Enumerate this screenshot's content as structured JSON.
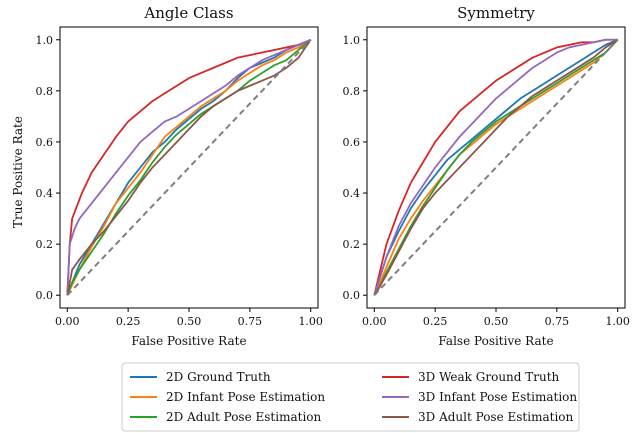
{
  "figure": {
    "ylabel": "True Positive Rate",
    "legend": {
      "placement": "bottom-center",
      "columns": 2
    }
  },
  "chart_data": [
    {
      "type": "line",
      "title": "Angle Class",
      "xlabel": "False Positive Rate",
      "ylabel": "True Positive Rate",
      "xlim": [
        -0.03,
        1.03
      ],
      "ylim": [
        -0.05,
        1.05
      ],
      "xticks": [
        "0.00",
        "0.25",
        "0.50",
        "0.75",
        "1.00"
      ],
      "yticks": [
        "0.0",
        "0.2",
        "0.4",
        "0.6",
        "0.8",
        "1.0"
      ],
      "grid": false,
      "series": [
        {
          "name": "2D Ground Truth",
          "color": "#1f77b4",
          "x": [
            0,
            0.02,
            0.05,
            0.1,
            0.15,
            0.2,
            0.25,
            0.3,
            0.35,
            0.4,
            0.45,
            0.5,
            0.55,
            0.6,
            0.65,
            0.7,
            0.75,
            0.8,
            0.85,
            0.9,
            0.95,
            1.0
          ],
          "y": [
            0,
            0.05,
            0.12,
            0.2,
            0.28,
            0.36,
            0.44,
            0.5,
            0.56,
            0.6,
            0.65,
            0.69,
            0.73,
            0.76,
            0.8,
            0.85,
            0.89,
            0.91,
            0.93,
            0.96,
            0.98,
            1.0
          ]
        },
        {
          "name": "2D Infant Pose Estimation",
          "color": "#ff7f0e",
          "x": [
            0,
            0.02,
            0.05,
            0.1,
            0.15,
            0.2,
            0.25,
            0.3,
            0.35,
            0.4,
            0.45,
            0.5,
            0.55,
            0.6,
            0.65,
            0.7,
            0.75,
            0.8,
            0.85,
            0.9,
            0.95,
            1.0
          ],
          "y": [
            0,
            0.04,
            0.1,
            0.19,
            0.27,
            0.36,
            0.42,
            0.48,
            0.55,
            0.62,
            0.66,
            0.7,
            0.74,
            0.77,
            0.8,
            0.84,
            0.87,
            0.9,
            0.92,
            0.95,
            0.97,
            1.0
          ]
        },
        {
          "name": "2D Adult Pose Estimation",
          "color": "#2ca02c",
          "x": [
            0,
            0.02,
            0.05,
            0.1,
            0.15,
            0.2,
            0.25,
            0.3,
            0.35,
            0.4,
            0.45,
            0.5,
            0.55,
            0.6,
            0.65,
            0.7,
            0.75,
            0.8,
            0.85,
            0.9,
            0.95,
            1.0
          ],
          "y": [
            0,
            0.05,
            0.1,
            0.17,
            0.24,
            0.32,
            0.39,
            0.45,
            0.52,
            0.58,
            0.63,
            0.67,
            0.71,
            0.74,
            0.77,
            0.8,
            0.84,
            0.87,
            0.9,
            0.92,
            0.96,
            1.0
          ]
        },
        {
          "name": "3D Weak Ground Truth",
          "color": "#d62728",
          "x": [
            0,
            0.01,
            0.02,
            0.04,
            0.06,
            0.08,
            0.1,
            0.15,
            0.2,
            0.25,
            0.3,
            0.35,
            0.4,
            0.45,
            0.5,
            0.55,
            0.6,
            0.65,
            0.7,
            0.75,
            0.8,
            0.85,
            0.9,
            0.95,
            1.0
          ],
          "y": [
            0,
            0.2,
            0.3,
            0.35,
            0.4,
            0.44,
            0.48,
            0.55,
            0.62,
            0.68,
            0.72,
            0.76,
            0.79,
            0.82,
            0.85,
            0.87,
            0.89,
            0.91,
            0.93,
            0.94,
            0.95,
            0.96,
            0.97,
            0.98,
            1.0
          ]
        },
        {
          "name": "3D Infant Pose Estimation",
          "color": "#9467bd",
          "x": [
            0,
            0.01,
            0.03,
            0.05,
            0.1,
            0.15,
            0.2,
            0.25,
            0.3,
            0.35,
            0.4,
            0.45,
            0.5,
            0.55,
            0.6,
            0.65,
            0.7,
            0.75,
            0.8,
            0.85,
            0.9,
            0.95,
            1.0
          ],
          "y": [
            0,
            0.2,
            0.26,
            0.3,
            0.36,
            0.42,
            0.48,
            0.54,
            0.6,
            0.64,
            0.68,
            0.7,
            0.73,
            0.76,
            0.79,
            0.82,
            0.86,
            0.89,
            0.92,
            0.94,
            0.96,
            0.98,
            1.0
          ]
        },
        {
          "name": "3D Adult Pose Estimation",
          "color": "#8c564b",
          "x": [
            0,
            0.02,
            0.05,
            0.1,
            0.15,
            0.2,
            0.25,
            0.3,
            0.35,
            0.4,
            0.45,
            0.5,
            0.55,
            0.6,
            0.65,
            0.7,
            0.75,
            0.8,
            0.85,
            0.9,
            0.95,
            1.0
          ],
          "y": [
            0,
            0.1,
            0.14,
            0.2,
            0.25,
            0.31,
            0.37,
            0.44,
            0.5,
            0.55,
            0.6,
            0.65,
            0.7,
            0.74,
            0.77,
            0.8,
            0.82,
            0.84,
            0.86,
            0.89,
            0.93,
            1.0
          ]
        },
        {
          "name": "",
          "color": "#7f7f7f",
          "dashed": true,
          "x": [
            0,
            1
          ],
          "y": [
            0,
            1
          ]
        }
      ]
    },
    {
      "type": "line",
      "title": "Symmetry",
      "xlabel": "False Positive Rate",
      "ylabel": "",
      "xlim": [
        -0.03,
        1.03
      ],
      "ylim": [
        -0.05,
        1.05
      ],
      "xticks": [
        "0.00",
        "0.25",
        "0.50",
        "0.75",
        "1.00"
      ],
      "yticks": [
        "0.0",
        "0.2",
        "0.4",
        "0.6",
        "0.8",
        "1.0"
      ],
      "grid": false,
      "series": [
        {
          "name": "2D Ground Truth",
          "color": "#1f77b4",
          "x": [
            0,
            0.02,
            0.05,
            0.1,
            0.15,
            0.2,
            0.25,
            0.3,
            0.35,
            0.4,
            0.45,
            0.5,
            0.55,
            0.6,
            0.65,
            0.7,
            0.75,
            0.8,
            0.85,
            0.9,
            0.95,
            1.0
          ],
          "y": [
            0,
            0.06,
            0.15,
            0.25,
            0.34,
            0.41,
            0.47,
            0.53,
            0.57,
            0.61,
            0.65,
            0.69,
            0.73,
            0.77,
            0.8,
            0.83,
            0.86,
            0.89,
            0.92,
            0.95,
            0.98,
            1.0
          ]
        },
        {
          "name": "2D Infant Pose Estimation",
          "color": "#ff7f0e",
          "x": [
            0,
            0.02,
            0.05,
            0.1,
            0.15,
            0.2,
            0.25,
            0.3,
            0.35,
            0.4,
            0.45,
            0.5,
            0.55,
            0.6,
            0.65,
            0.7,
            0.75,
            0.8,
            0.85,
            0.9,
            0.95,
            1.0
          ],
          "y": [
            0,
            0.04,
            0.11,
            0.22,
            0.3,
            0.37,
            0.43,
            0.49,
            0.55,
            0.59,
            0.63,
            0.67,
            0.7,
            0.73,
            0.76,
            0.79,
            0.82,
            0.85,
            0.88,
            0.91,
            0.95,
            1.0
          ]
        },
        {
          "name": "2D Adult Pose Estimation",
          "color": "#2ca02c",
          "x": [
            0,
            0.02,
            0.05,
            0.1,
            0.15,
            0.2,
            0.25,
            0.3,
            0.35,
            0.4,
            0.45,
            0.5,
            0.55,
            0.6,
            0.65,
            0.7,
            0.75,
            0.8,
            0.85,
            0.9,
            0.95,
            1.0
          ],
          "y": [
            0,
            0.03,
            0.09,
            0.18,
            0.27,
            0.35,
            0.42,
            0.49,
            0.55,
            0.6,
            0.64,
            0.68,
            0.71,
            0.74,
            0.77,
            0.8,
            0.83,
            0.86,
            0.89,
            0.92,
            0.95,
            1.0
          ]
        },
        {
          "name": "3D Weak Ground Truth",
          "color": "#d62728",
          "x": [
            0,
            0.02,
            0.05,
            0.1,
            0.15,
            0.2,
            0.25,
            0.3,
            0.35,
            0.4,
            0.45,
            0.5,
            0.55,
            0.6,
            0.65,
            0.7,
            0.75,
            0.8,
            0.85,
            0.9,
            0.95,
            1.0
          ],
          "y": [
            0,
            0.08,
            0.2,
            0.33,
            0.44,
            0.52,
            0.6,
            0.66,
            0.72,
            0.76,
            0.8,
            0.84,
            0.87,
            0.9,
            0.93,
            0.95,
            0.97,
            0.98,
            0.99,
            0.99,
            1.0,
            1.0
          ]
        },
        {
          "name": "3D Infant Pose Estimation",
          "color": "#9467bd",
          "x": [
            0,
            0.02,
            0.05,
            0.1,
            0.15,
            0.2,
            0.25,
            0.3,
            0.35,
            0.4,
            0.45,
            0.5,
            0.55,
            0.6,
            0.65,
            0.7,
            0.75,
            0.8,
            0.85,
            0.9,
            0.95,
            1.0
          ],
          "y": [
            0,
            0.06,
            0.15,
            0.27,
            0.36,
            0.43,
            0.5,
            0.56,
            0.62,
            0.67,
            0.72,
            0.77,
            0.81,
            0.85,
            0.89,
            0.92,
            0.95,
            0.97,
            0.98,
            0.99,
            1.0,
            1.0
          ]
        },
        {
          "name": "3D Adult Pose Estimation",
          "color": "#8c564b",
          "x": [
            0,
            0.02,
            0.05,
            0.1,
            0.15,
            0.2,
            0.25,
            0.3,
            0.35,
            0.4,
            0.45,
            0.5,
            0.55,
            0.6,
            0.65,
            0.7,
            0.75,
            0.8,
            0.85,
            0.9,
            0.95,
            1.0
          ],
          "y": [
            0,
            0.03,
            0.08,
            0.17,
            0.26,
            0.34,
            0.4,
            0.45,
            0.5,
            0.55,
            0.6,
            0.65,
            0.7,
            0.74,
            0.78,
            0.81,
            0.84,
            0.87,
            0.9,
            0.93,
            0.97,
            1.0
          ]
        },
        {
          "name": "",
          "color": "#7f7f7f",
          "dashed": true,
          "x": [
            0,
            1
          ],
          "y": [
            0,
            1
          ]
        }
      ]
    }
  ]
}
